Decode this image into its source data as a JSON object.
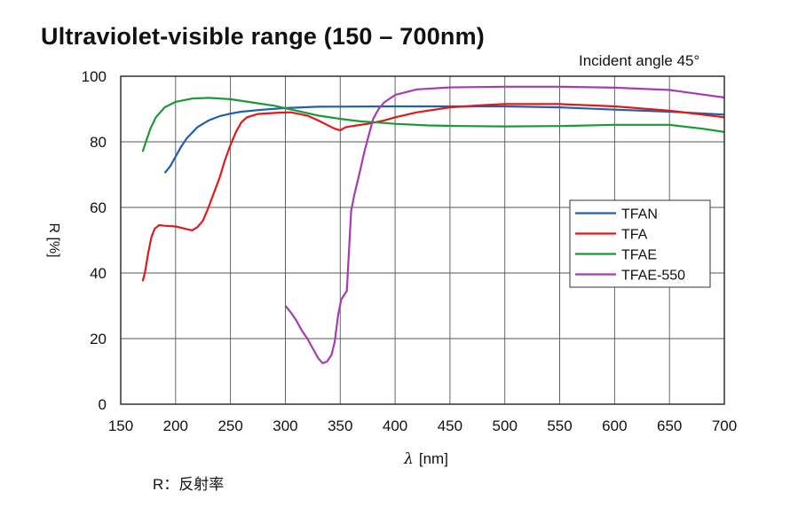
{
  "chart_data": {
    "type": "line",
    "title": "Ultraviolet-visible range (150 – 700nm)",
    "annotation": "Incident angle 45°",
    "xlabel_symbol": "λ",
    "xlabel_unit": "[nm]",
    "ylabel": "R [%]",
    "footnote": "R：反射率",
    "xlim": [
      150,
      700
    ],
    "ylim": [
      0,
      100
    ],
    "xticks": [
      150,
      200,
      250,
      300,
      350,
      400,
      450,
      500,
      550,
      600,
      650,
      700
    ],
    "yticks": [
      0,
      20,
      40,
      60,
      80,
      100
    ],
    "grid": true,
    "legend_position": "right",
    "series": [
      {
        "name": "TFAN",
        "color": "#1f5fb0",
        "points": [
          [
            190,
            70.5
          ],
          [
            195,
            72.5
          ],
          [
            200,
            75.5
          ],
          [
            205,
            78.5
          ],
          [
            210,
            81
          ],
          [
            220,
            84.5
          ],
          [
            230,
            86.5
          ],
          [
            240,
            87.8
          ],
          [
            250,
            88.6
          ],
          [
            260,
            89.2
          ],
          [
            280,
            89.8
          ],
          [
            300,
            90.3
          ],
          [
            330,
            90.7
          ],
          [
            400,
            90.8
          ],
          [
            500,
            90.8
          ],
          [
            550,
            90.5
          ],
          [
            600,
            89.8
          ],
          [
            650,
            89.2
          ],
          [
            700,
            88.3
          ]
        ]
      },
      {
        "name": "TFA",
        "color": "#e01a1a",
        "points": [
          [
            170,
            37.5
          ],
          [
            172,
            40
          ],
          [
            175,
            46
          ],
          [
            178,
            51
          ],
          [
            181,
            53.5
          ],
          [
            185,
            54.6
          ],
          [
            190,
            54.4
          ],
          [
            200,
            54.2
          ],
          [
            210,
            53.4
          ],
          [
            215,
            53
          ],
          [
            220,
            54
          ],
          [
            225,
            56
          ],
          [
            230,
            60
          ],
          [
            235,
            64.5
          ],
          [
            240,
            69
          ],
          [
            245,
            74.5
          ],
          [
            250,
            79
          ],
          [
            255,
            83
          ],
          [
            260,
            86
          ],
          [
            265,
            87.5
          ],
          [
            275,
            88.5
          ],
          [
            290,
            88.8
          ],
          [
            305,
            89
          ],
          [
            320,
            88
          ],
          [
            330,
            86.5
          ],
          [
            345,
            84
          ],
          [
            350,
            83.5
          ],
          [
            355,
            84.5
          ],
          [
            365,
            85
          ],
          [
            375,
            85.5
          ],
          [
            390,
            86.5
          ],
          [
            400,
            87.5
          ],
          [
            420,
            89
          ],
          [
            450,
            90.5
          ],
          [
            480,
            91.2
          ],
          [
            500,
            91.5
          ],
          [
            550,
            91.5
          ],
          [
            600,
            90.8
          ],
          [
            650,
            89.5
          ],
          [
            700,
            87.5
          ]
        ]
      },
      {
        "name": "TFAE",
        "color": "#1a9a36",
        "points": [
          [
            170,
            77
          ],
          [
            173,
            80
          ],
          [
            177,
            84
          ],
          [
            182,
            87.5
          ],
          [
            190,
            90.5
          ],
          [
            200,
            92.2
          ],
          [
            215,
            93.2
          ],
          [
            230,
            93.4
          ],
          [
            250,
            93
          ],
          [
            270,
            92
          ],
          [
            290,
            91
          ],
          [
            310,
            89.5
          ],
          [
            330,
            88
          ],
          [
            350,
            87
          ],
          [
            370,
            86.2
          ],
          [
            380,
            86
          ],
          [
            400,
            85.5
          ],
          [
            430,
            85
          ],
          [
            460,
            84.8
          ],
          [
            500,
            84.7
          ],
          [
            550,
            84.8
          ],
          [
            600,
            85.2
          ],
          [
            650,
            85.2
          ],
          [
            680,
            84
          ],
          [
            700,
            83
          ]
        ]
      },
      {
        "name": "TFAE-550",
        "color": "#a53db0",
        "points": [
          [
            300,
            30
          ],
          [
            305,
            28
          ],
          [
            310,
            25.5
          ],
          [
            315,
            22.5
          ],
          [
            320,
            20
          ],
          [
            325,
            17
          ],
          [
            330,
            14
          ],
          [
            334,
            12.5
          ],
          [
            338,
            13
          ],
          [
            342,
            15
          ],
          [
            345,
            19
          ],
          [
            348,
            27
          ],
          [
            351,
            32
          ],
          [
            356,
            34.5
          ],
          [
            360,
            59
          ],
          [
            363,
            64
          ],
          [
            368,
            71
          ],
          [
            372,
            77
          ],
          [
            376,
            82
          ],
          [
            380,
            87
          ],
          [
            385,
            90
          ],
          [
            390,
            92
          ],
          [
            400,
            94.3
          ],
          [
            420,
            96
          ],
          [
            450,
            96.6
          ],
          [
            500,
            96.8
          ],
          [
            550,
            96.8
          ],
          [
            600,
            96.5
          ],
          [
            650,
            95.8
          ],
          [
            700,
            93.5
          ]
        ]
      }
    ]
  }
}
